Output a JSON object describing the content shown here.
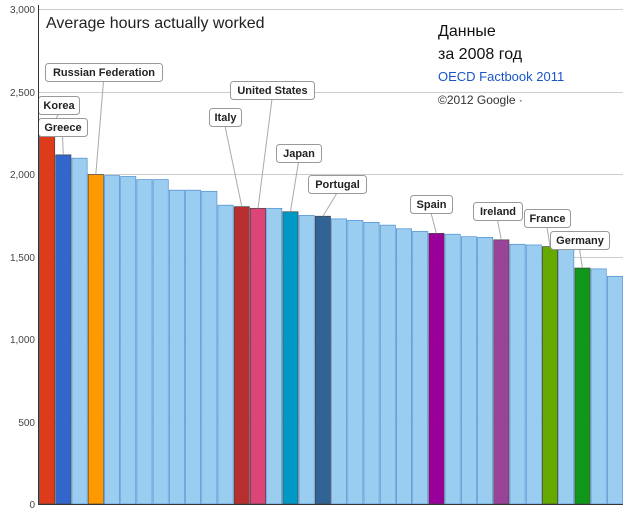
{
  "chart_data": {
    "type": "bar",
    "title": "Average hours actually worked",
    "xlabel": "",
    "ylabel": "",
    "ylim": [
      0,
      3000
    ],
    "yticks": [
      "0",
      "500",
      "1,000",
      "1,500",
      "2,000",
      "2,500",
      "3,000"
    ],
    "grid": true,
    "legend": "none",
    "values": [
      2243,
      2116,
      2096,
      1997,
      1990,
      1985,
      1966,
      1966,
      1902,
      1902,
      1895,
      1811,
      1802,
      1792,
      1792,
      1771,
      1749,
      1744,
      1728,
      1719,
      1707,
      1690,
      1668,
      1652,
      1640,
      1635,
      1620,
      1616,
      1601,
      1574,
      1570,
      1560,
      1545,
      1430,
      1425,
      1380
    ],
    "colors": [
      "#dd3b1b",
      "#3366cc",
      "#9bcdf0",
      "#ff9900",
      "#9bcdf0",
      "#9bcdf0",
      "#9bcdf0",
      "#9bcdf0",
      "#9bcdf0",
      "#9bcdf0",
      "#9bcdf0",
      "#9bcdf0",
      "#b82e2e",
      "#dd4477",
      "#9bcdf0",
      "#0099c6",
      "#9bcdf0",
      "#316395",
      "#9bcdf0",
      "#9bcdf0",
      "#9bcdf0",
      "#9bcdf0",
      "#9bcdf0",
      "#9bcdf0",
      "#990099",
      "#9bcdf0",
      "#9bcdf0",
      "#9bcdf0",
      "#994499",
      "#9bcdf0",
      "#9bcdf0",
      "#66aa00",
      "#9bcdf0",
      "#109618",
      "#9bcdf0",
      "#9bcdf0"
    ],
    "annotations": [
      {
        "text": "Korea",
        "bar": 0
      },
      {
        "text": "Greece",
        "bar": 1
      },
      {
        "text": "Russian Federation",
        "bar": 3
      },
      {
        "text": "Italy",
        "bar": 12
      },
      {
        "text": "United States",
        "bar": 13
      },
      {
        "text": "Japan",
        "bar": 15
      },
      {
        "text": "Portugal",
        "bar": 17
      },
      {
        "text": "Spain",
        "bar": 24
      },
      {
        "text": "Ireland",
        "bar": 28
      },
      {
        "text": "France",
        "bar": 31
      },
      {
        "text": "Germany",
        "bar": 33
      }
    ]
  },
  "source": {
    "line1": "Данные",
    "line2": "за 2008 год",
    "ref": "OECD Factbook 2011",
    "copyright": "©2012 Google ·"
  }
}
